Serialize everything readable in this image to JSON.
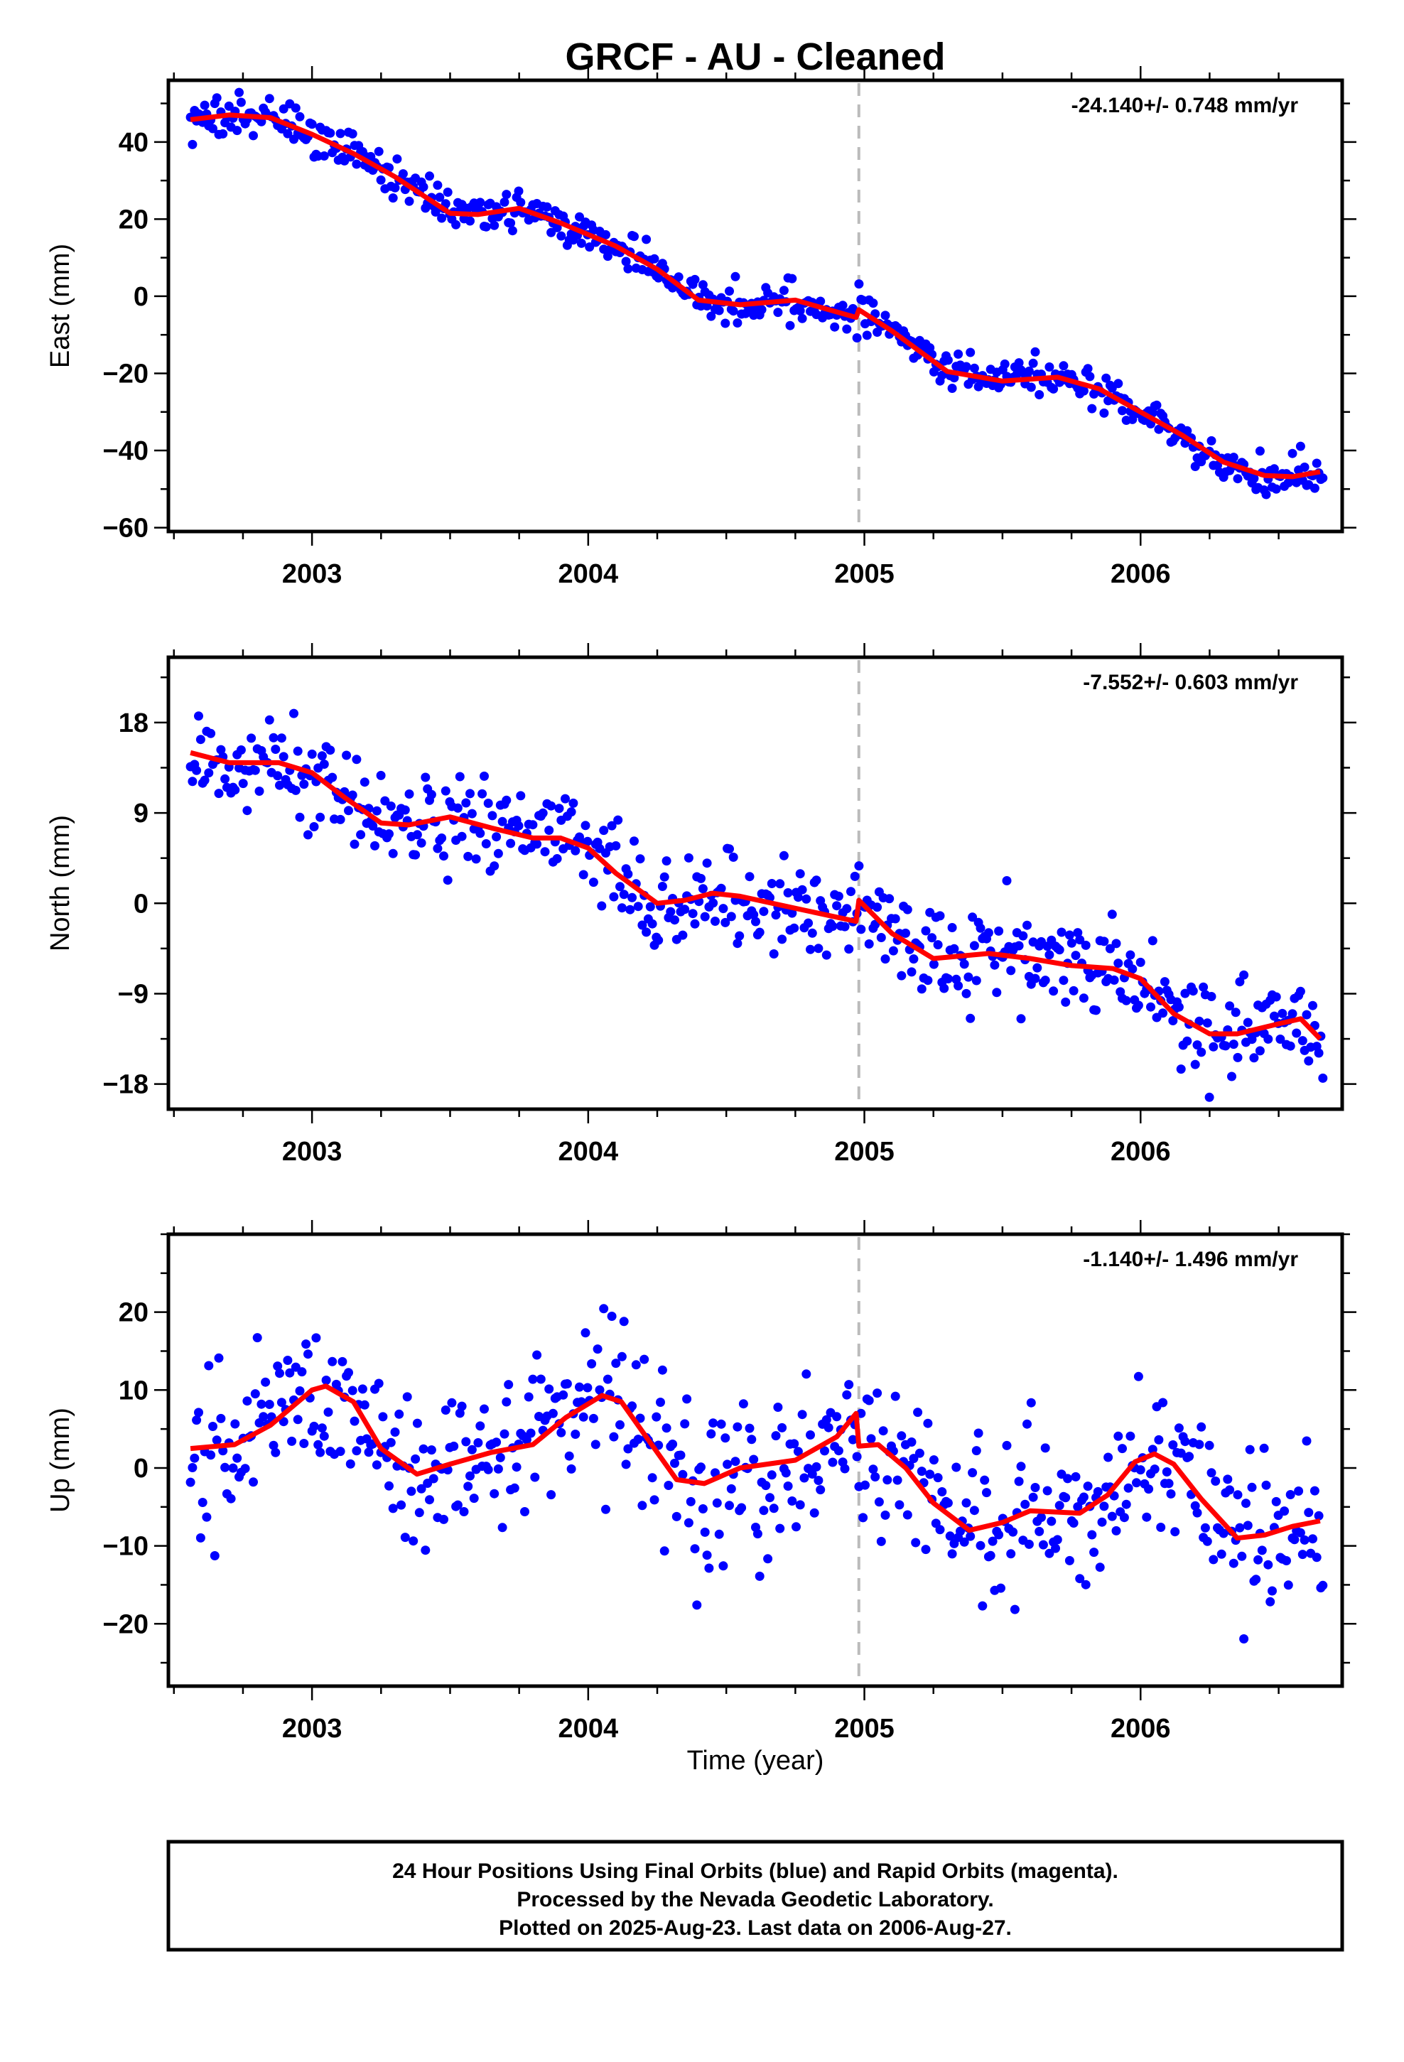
{
  "title": "GRCF  - AU - Cleaned",
  "xlabel": "Time (year)",
  "footer": {
    "line1": "24 Hour Positions Using Final Orbits (blue) and Rapid Orbits (magenta).",
    "line2": "Processed by the Nevada Geodetic Laboratory.",
    "line3": "Plotted on 2025-Aug-23. Last data on 2006-Aug-27."
  },
  "colors": {
    "points": "#0000ff",
    "model": "#ff0000",
    "break_line": "#bbbbbb"
  },
  "chart_data": [
    {
      "type": "scatter",
      "name": "east",
      "ylabel": "East (mm)",
      "rate": "-24.140+/- 0.748 mm/yr",
      "xlim": [
        2002.48,
        2006.73
      ],
      "ylim": [
        -61,
        56
      ],
      "xticks": [
        2003,
        2004,
        2005,
        2006
      ],
      "yticks": [
        -60,
        -40,
        -20,
        0,
        20,
        40
      ],
      "break_x": 2004.98,
      "scatter_sd": 2.6,
      "model": [
        [
          2002.56,
          45.8
        ],
        [
          2002.7,
          47
        ],
        [
          2002.85,
          46.3
        ],
        [
          2003.0,
          42
        ],
        [
          2003.15,
          37
        ],
        [
          2003.3,
          31
        ],
        [
          2003.5,
          21.5
        ],
        [
          2003.6,
          21.2
        ],
        [
          2003.75,
          22.8
        ],
        [
          2003.9,
          19
        ],
        [
          2004.1,
          13
        ],
        [
          2004.25,
          7
        ],
        [
          2004.4,
          -1
        ],
        [
          2004.55,
          -2.2
        ],
        [
          2004.75,
          -1
        ],
        [
          2004.97,
          -5.5
        ],
        [
          2004.98,
          -3.5
        ],
        [
          2005.1,
          -9
        ],
        [
          2005.3,
          -19.5
        ],
        [
          2005.5,
          -22
        ],
        [
          2005.7,
          -21
        ],
        [
          2005.85,
          -24
        ],
        [
          2006.0,
          -30
        ],
        [
          2006.15,
          -36
        ],
        [
          2006.3,
          -43
        ],
        [
          2006.45,
          -46.5
        ],
        [
          2006.55,
          -46.8
        ],
        [
          2006.65,
          -45.5
        ]
      ]
    },
    {
      "type": "scatter",
      "name": "north",
      "ylabel": "North (mm)",
      "rate": "-7.552+/- 0.603 mm/yr",
      "xlim": [
        2002.48,
        2006.73
      ],
      "ylim": [
        -20.5,
        24.5
      ],
      "xticks": [
        2003,
        2004,
        2005,
        2006
      ],
      "yticks": [
        -18,
        -9,
        0,
        9,
        18
      ],
      "break_x": 2004.98,
      "scatter_sd": 2.3,
      "model": [
        [
          2002.56,
          15
        ],
        [
          2002.7,
          14
        ],
        [
          2002.88,
          14
        ],
        [
          2003.0,
          13
        ],
        [
          2003.12,
          10.5
        ],
        [
          2003.25,
          8
        ],
        [
          2003.35,
          7.8
        ],
        [
          2003.5,
          8.6
        ],
        [
          2003.65,
          7.5
        ],
        [
          2003.8,
          6.5
        ],
        [
          2003.9,
          6.5
        ],
        [
          2004.0,
          5.5
        ],
        [
          2004.1,
          3
        ],
        [
          2004.25,
          0
        ],
        [
          2004.35,
          0.3
        ],
        [
          2004.45,
          1
        ],
        [
          2004.55,
          0.7
        ],
        [
          2004.75,
          -0.5
        ],
        [
          2004.97,
          -1.8
        ],
        [
          2004.98,
          0.3
        ],
        [
          2005.1,
          -3
        ],
        [
          2005.25,
          -5.5
        ],
        [
          2005.45,
          -5
        ],
        [
          2005.6,
          -5.5
        ],
        [
          2005.75,
          -6.2
        ],
        [
          2005.9,
          -6.5
        ],
        [
          2006.0,
          -7.5
        ],
        [
          2006.12,
          -11
        ],
        [
          2006.25,
          -13
        ],
        [
          2006.35,
          -13
        ],
        [
          2006.5,
          -12
        ],
        [
          2006.58,
          -11.5
        ],
        [
          2006.65,
          -13.5
        ]
      ]
    },
    {
      "type": "scatter",
      "name": "up",
      "ylabel": "Up (mm)",
      "rate": "-1.140+/- 1.496 mm/yr",
      "xlim": [
        2002.48,
        2006.73
      ],
      "ylim": [
        -28,
        30
      ],
      "xticks": [
        2003,
        2004,
        2005,
        2006
      ],
      "yticks": [
        -20,
        -10,
        0,
        10,
        20
      ],
      "break_x": 2004.98,
      "scatter_sd": 5.2,
      "model": [
        [
          2002.56,
          2.5
        ],
        [
          2002.72,
          3
        ],
        [
          2002.85,
          5.5
        ],
        [
          2003.0,
          10
        ],
        [
          2003.05,
          10.5
        ],
        [
          2003.15,
          8.5
        ],
        [
          2003.25,
          2.5
        ],
        [
          2003.38,
          -0.8
        ],
        [
          2003.5,
          0.5
        ],
        [
          2003.65,
          2
        ],
        [
          2003.8,
          3
        ],
        [
          2003.92,
          6.5
        ],
        [
          2004.05,
          9.3
        ],
        [
          2004.12,
          8.5
        ],
        [
          2004.22,
          3.5
        ],
        [
          2004.32,
          -1.5
        ],
        [
          2004.42,
          -2
        ],
        [
          2004.55,
          0
        ],
        [
          2004.75,
          1
        ],
        [
          2004.9,
          4
        ],
        [
          2004.97,
          7
        ],
        [
          2004.98,
          2.8
        ],
        [
          2005.05,
          3
        ],
        [
          2005.15,
          0
        ],
        [
          2005.25,
          -4.5
        ],
        [
          2005.38,
          -8
        ],
        [
          2005.5,
          -7
        ],
        [
          2005.6,
          -5.5
        ],
        [
          2005.78,
          -5.8
        ],
        [
          2005.88,
          -3.5
        ],
        [
          2005.98,
          0.8
        ],
        [
          2006.05,
          1.8
        ],
        [
          2006.12,
          0.5
        ],
        [
          2006.22,
          -4
        ],
        [
          2006.35,
          -9
        ],
        [
          2006.45,
          -8.6
        ],
        [
          2006.55,
          -7.5
        ],
        [
          2006.65,
          -6.8
        ]
      ]
    }
  ]
}
